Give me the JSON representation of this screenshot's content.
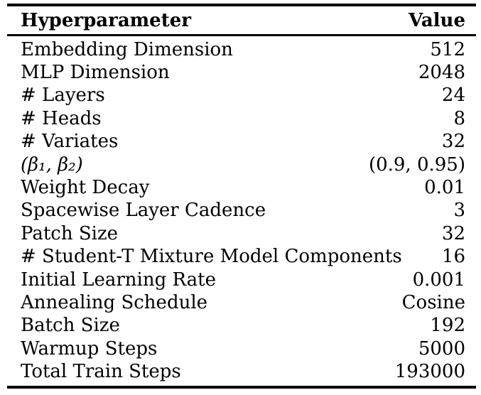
{
  "table": {
    "columns": [
      {
        "label": "Hyperparameter"
      },
      {
        "label": "Value"
      }
    ],
    "rows": [
      {
        "label": "Embedding Dimension",
        "value": "512"
      },
      {
        "label": "MLP Dimension",
        "value": "2048"
      },
      {
        "label": "# Layers",
        "value": "24"
      },
      {
        "label": "# Heads",
        "value": "8"
      },
      {
        "label": "# Variates",
        "value": "32"
      },
      {
        "label": "(β₁,  β₂)",
        "value": "(0.9, 0.95)"
      },
      {
        "label": "Weight Decay",
        "value": "0.01"
      },
      {
        "label": "Spacewise Layer Cadence",
        "value": "3"
      },
      {
        "label": "Patch Size",
        "value": "32"
      },
      {
        "label": "# Student-T Mixture Model Components",
        "value": "16"
      },
      {
        "label": "Initial Learning Rate",
        "value": "0.001"
      },
      {
        "label": "Annealing Schedule",
        "value": "Cosine"
      },
      {
        "label": "Batch Size",
        "value": "192"
      },
      {
        "label": "Warmup Steps",
        "value": "5000"
      },
      {
        "label": "Total Train Steps",
        "value": "193000"
      }
    ],
    "colors": {
      "text": "#000000",
      "rule": "#000000",
      "background": "#ffffff"
    }
  }
}
